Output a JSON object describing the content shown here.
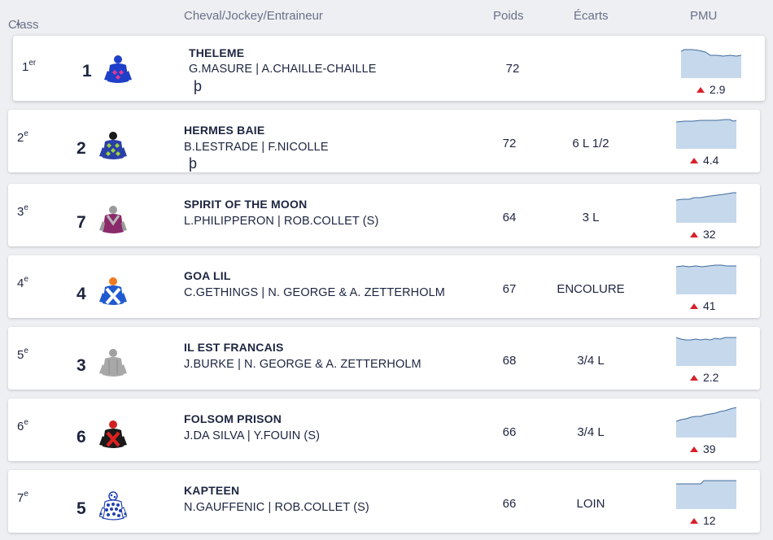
{
  "header": {
    "class_label": "Class",
    "horse_label": "Cheval/Jockey/Entraineur",
    "poids_label": "Poids",
    "ecarts_label": "Écarts",
    "pmu_label": "PMU"
  },
  "colors": {
    "odds_up": "#d8202a",
    "spark_fill": "#c6d8ec",
    "spark_line": "#3f6a9e"
  },
  "rows": [
    {
      "rank": "1",
      "rank_sup": "er",
      "num": "1",
      "name": "THELEME",
      "jockey": "G.MASURE | A.CHAILLE-CHAILLE",
      "thorn": "þ",
      "poids": "72",
      "ecart": "",
      "odds": "2.9",
      "silk": "blue-red-diamonds-silk-icon"
    },
    {
      "rank": "2",
      "rank_sup": "e",
      "num": "2",
      "name": "HERMES BAIE",
      "jockey": "B.LESTRADE | F.NICOLLE",
      "thorn": "þ",
      "poids": "72",
      "ecart": "6 L 1/2",
      "odds": "4.4",
      "silk": "green-check-silk-icon"
    },
    {
      "rank": "3",
      "rank_sup": "e",
      "num": "7",
      "name": "SPIRIT OF THE MOON",
      "jockey": "L.PHILIPPERON | ROB.COLLET (S)",
      "thorn": "",
      "poids": "64",
      "ecart": "3 L",
      "odds": "32",
      "silk": "purple-grey-silk-icon"
    },
    {
      "rank": "4",
      "rank_sup": "e",
      "num": "4",
      "name": "GOA LIL",
      "jockey": "C.GETHINGS | N. GEORGE & A. ZETTERHOLM",
      "thorn": "",
      "poids": "67",
      "ecart": "ENCOLURE",
      "odds": "41",
      "silk": "blue-white-cross-silk-icon"
    },
    {
      "rank": "5",
      "rank_sup": "e",
      "num": "3",
      "name": "IL EST FRANCAIS",
      "jockey": "J.BURKE | N. GEORGE & A. ZETTERHOLM",
      "thorn": "",
      "poids": "68",
      "ecart": "3/4 L",
      "odds": "2.2",
      "silk": "grey-silk-icon"
    },
    {
      "rank": "6",
      "rank_sup": "e",
      "num": "6",
      "name": "FOLSOM PRISON",
      "jockey": "J.DA SILVA | Y.FOUIN (S)",
      "thorn": "",
      "poids": "66",
      "ecart": "3/4 L",
      "odds": "39",
      "silk": "black-red-cross-silk-icon"
    },
    {
      "rank": "7",
      "rank_sup": "e",
      "num": "5",
      "name": "KAPTEEN",
      "jockey": "N.GAUFFENIC | ROB.COLLET (S)",
      "thorn": "",
      "poids": "66",
      "ecart": "LOIN",
      "odds": "12",
      "silk": "blue-white-spots-silk-icon"
    }
  ]
}
